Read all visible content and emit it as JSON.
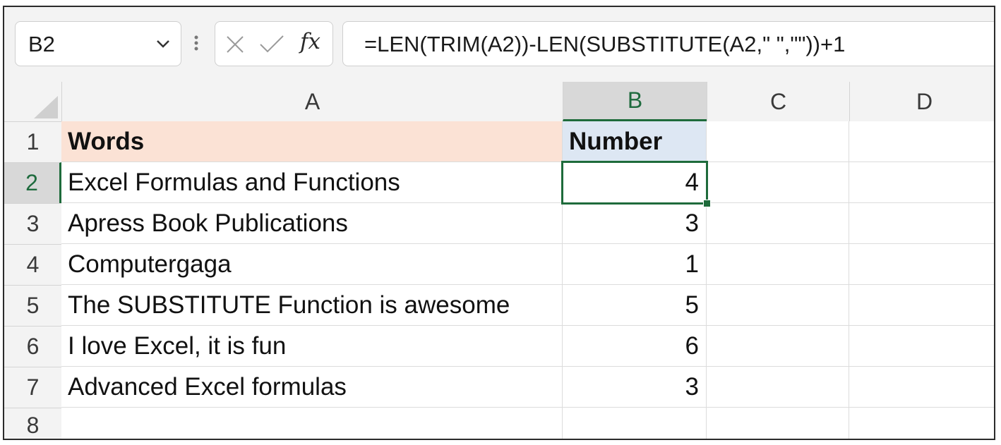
{
  "name_box": {
    "value": "B2"
  },
  "formula_bar": {
    "cancel_icon": "close-icon",
    "enter_icon": "check-icon",
    "fx_label": "fx",
    "formula": "=LEN(TRIM(A2))-LEN(SUBSTITUTE(A2,\" \",\"\"))+1"
  },
  "columns": [
    "A",
    "B",
    "C",
    "D"
  ],
  "rows": [
    "1",
    "2",
    "3",
    "4",
    "5",
    "6",
    "7",
    "8"
  ],
  "active_cell": "B2",
  "cells": {
    "header": {
      "a": "Words",
      "b": "Number"
    },
    "data": [
      {
        "a": "Excel Formulas and Functions",
        "b": "4"
      },
      {
        "a": "Apress Book Publications",
        "b": "3"
      },
      {
        "a": "Computergaga",
        "b": "1"
      },
      {
        "a": "The SUBSTITUTE Function is awesome",
        "b": "5"
      },
      {
        "a": "I love Excel, it is fun",
        "b": "6"
      },
      {
        "a": "Advanced Excel formulas",
        "b": "3"
      }
    ]
  },
  "colors": {
    "selection": "#1e6b3b",
    "header_a_fill": "#fbe2d5",
    "header_b_fill": "#dde7f3"
  }
}
